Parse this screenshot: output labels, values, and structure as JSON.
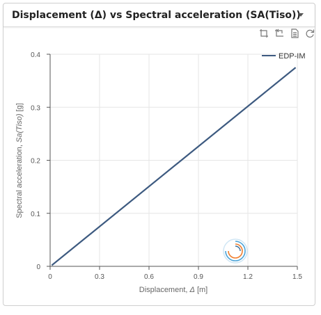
{
  "header": {
    "title": "Displacement (Δ) vs Spectral acceleration (SA(Tiso))"
  },
  "toolbox": [
    {
      "name": "zoom-icon"
    },
    {
      "name": "zoom-reset-icon"
    },
    {
      "name": "data-view-icon"
    },
    {
      "name": "restore-icon"
    }
  ],
  "chart_data": {
    "type": "line",
    "xlabel_prefix": "Displacement, ",
    "xlabel_symbol": "Δ",
    "xlabel_unit": " [m]",
    "ylabel_prefix": "Spectral acceleration, ",
    "ylabel_symbol": "Sa(Tiso)",
    "ylabel_unit": " [g]",
    "xlim": [
      0,
      1.5
    ],
    "ylim": [
      0,
      0.4
    ],
    "xticks": [
      0,
      0.3,
      0.6,
      0.9,
      1.2,
      1.5
    ],
    "yticks": [
      0,
      0.1,
      0.2,
      0.3,
      0.4
    ],
    "grid": true,
    "legend_position": "top-right",
    "series": [
      {
        "name": "EDP-IM",
        "color": "#3d5a80",
        "x": [
          0.01,
          1.49
        ],
        "y": [
          0.002,
          0.375
        ]
      }
    ]
  }
}
